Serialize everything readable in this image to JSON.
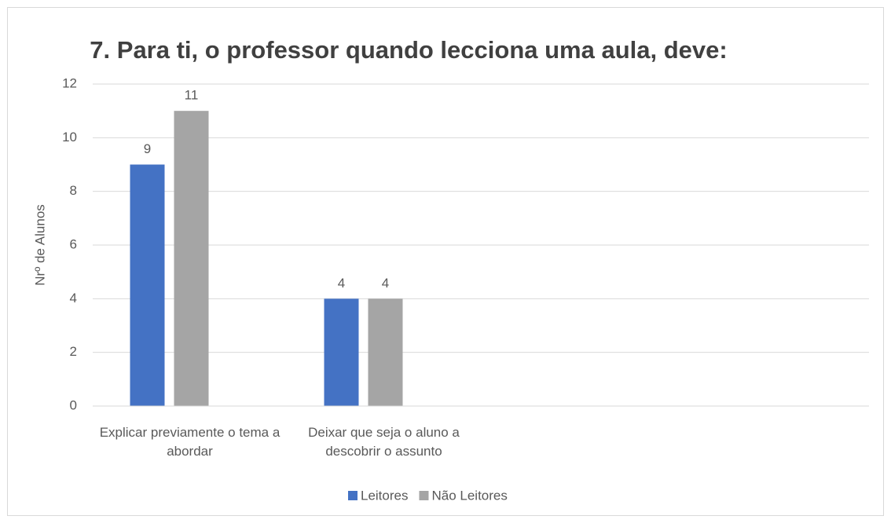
{
  "chart_data": {
    "type": "bar",
    "title": "7. Para ti, o professor quando lecciona uma aula, deve:",
    "y_label": "Nrº de Alunos",
    "categories": [
      "Explicar previamente o tema a abordar",
      "Deixar que seja o aluno a descobrir o assunto",
      null,
      null
    ],
    "series": [
      {
        "name": "Leitores",
        "color": "#4472c4",
        "values": [
          9,
          4,
          null,
          null
        ]
      },
      {
        "name": "Não Leitores",
        "color": "#a5a5a5",
        "values": [
          11,
          4,
          null,
          null
        ]
      }
    ],
    "ylim": [
      0,
      12
    ],
    "yticks": [
      0,
      2,
      4,
      6,
      8,
      10,
      12
    ],
    "grid": true,
    "legend": "bottom"
  }
}
